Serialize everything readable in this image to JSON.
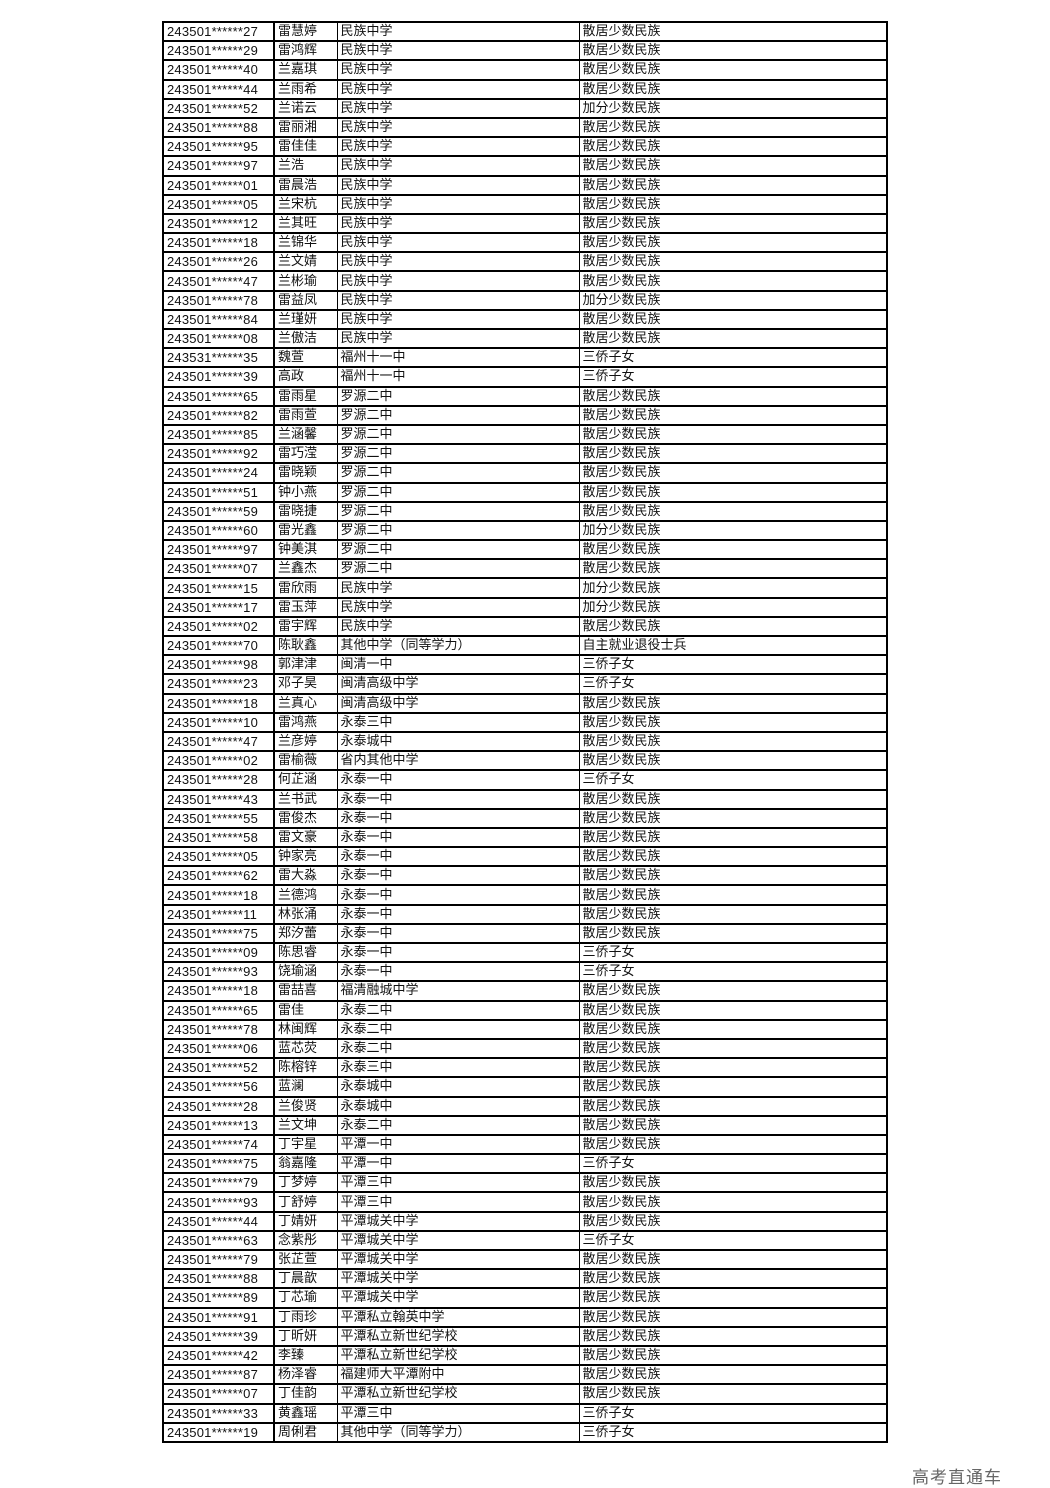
{
  "watermark": "高考直通车",
  "rows": [
    [
      "243501******27",
      "雷慧婷",
      "民族中学",
      "散居少数民族"
    ],
    [
      "243501******29",
      "雷鸿辉",
      "民族中学",
      "散居少数民族"
    ],
    [
      "243501******40",
      "兰嘉琪",
      "民族中学",
      "散居少数民族"
    ],
    [
      "243501******44",
      "兰雨希",
      "民族中学",
      "散居少数民族"
    ],
    [
      "243501******52",
      "兰诺云",
      "民族中学",
      "加分少数民族"
    ],
    [
      "243501******88",
      "雷丽湘",
      "民族中学",
      "散居少数民族"
    ],
    [
      "243501******95",
      "雷佳佳",
      "民族中学",
      "散居少数民族"
    ],
    [
      "243501******97",
      "兰浩",
      "民族中学",
      "散居少数民族"
    ],
    [
      "243501******01",
      "雷晨浩",
      "民族中学",
      "散居少数民族"
    ],
    [
      "243501******05",
      "兰宋杭",
      "民族中学",
      "散居少数民族"
    ],
    [
      "243501******12",
      "兰其旺",
      "民族中学",
      "散居少数民族"
    ],
    [
      "243501******18",
      "兰锦华",
      "民族中学",
      "散居少数民族"
    ],
    [
      "243501******26",
      "兰文婧",
      "民族中学",
      "散居少数民族"
    ],
    [
      "243501******47",
      "兰彬瑜",
      "民族中学",
      "散居少数民族"
    ],
    [
      "243501******78",
      "雷益凤",
      "民族中学",
      "加分少数民族"
    ],
    [
      "243501******84",
      "兰瑾妍",
      "民族中学",
      "散居少数民族"
    ],
    [
      "243501******08",
      "兰傲洁",
      "民族中学",
      "散居少数民族"
    ],
    [
      "243531******35",
      "魏萱",
      "福州十一中",
      "三侨子女"
    ],
    [
      "243501******39",
      "高政",
      "福州十一中",
      "三侨子女"
    ],
    [
      "243501******65",
      "雷雨星",
      "罗源二中",
      "散居少数民族"
    ],
    [
      "243501******82",
      "雷雨萱",
      "罗源二中",
      "散居少数民族"
    ],
    [
      "243501******85",
      "兰涵馨",
      "罗源二中",
      "散居少数民族"
    ],
    [
      "243501******92",
      "雷巧滢",
      "罗源二中",
      "散居少数民族"
    ],
    [
      "243501******24",
      "雷晓颖",
      "罗源二中",
      "散居少数民族"
    ],
    [
      "243501******51",
      "钟小燕",
      "罗源二中",
      "散居少数民族"
    ],
    [
      "243501******59",
      "雷晓捷",
      "罗源二中",
      "散居少数民族"
    ],
    [
      "243501******60",
      "雷光鑫",
      "罗源二中",
      "加分少数民族"
    ],
    [
      "243501******97",
      "钟美淇",
      "罗源二中",
      "散居少数民族"
    ],
    [
      "243501******07",
      "兰鑫杰",
      "罗源二中",
      "散居少数民族"
    ],
    [
      "243501******15",
      "雷欣雨",
      "民族中学",
      "加分少数民族"
    ],
    [
      "243501******17",
      "雷玉萍",
      "民族中学",
      "加分少数民族"
    ],
    [
      "243501******02",
      "雷宇辉",
      "民族中学",
      "散居少数民族"
    ],
    [
      "243501******70",
      "陈耿鑫",
      "其他中学（同等学力）",
      "自主就业退役士兵"
    ],
    [
      "243501******98",
      "郭津津",
      "闽清一中",
      "三侨子女"
    ],
    [
      "243501******23",
      "邓子昊",
      "闽清高级中学",
      "三侨子女"
    ],
    [
      "243501******18",
      "兰真心",
      "闽清高级中学",
      "散居少数民族"
    ],
    [
      "243501******10",
      "雷鸿燕",
      "永泰三中",
      "散居少数民族"
    ],
    [
      "243501******47",
      "兰彦婷",
      "永泰城中",
      "散居少数民族"
    ],
    [
      "243501******02",
      "雷榆薇",
      "省内其他中学",
      "散居少数民族"
    ],
    [
      "243501******28",
      "何芷涵",
      "永泰一中",
      "三侨子女"
    ],
    [
      "243501******43",
      "兰书武",
      "永泰一中",
      "散居少数民族"
    ],
    [
      "243501******55",
      "雷俊杰",
      "永泰一中",
      "散居少数民族"
    ],
    [
      "243501******58",
      "雷文豪",
      "永泰一中",
      "散居少数民族"
    ],
    [
      "243501******05",
      "钟家亮",
      "永泰一中",
      "散居少数民族"
    ],
    [
      "243501******62",
      "雷大淼",
      "永泰一中",
      "散居少数民族"
    ],
    [
      "243501******18",
      "兰德鸿",
      "永泰一中",
      "散居少数民族"
    ],
    [
      "243501******11",
      "林张涌",
      "永泰一中",
      "散居少数民族"
    ],
    [
      "243501******75",
      "郑汐蕾",
      "永泰一中",
      "散居少数民族"
    ],
    [
      "243501******09",
      "陈思睿",
      "永泰一中",
      "三侨子女"
    ],
    [
      "243501******93",
      "饶瑜涵",
      "永泰一中",
      "三侨子女"
    ],
    [
      "243501******18",
      "雷喆喜",
      "福清融城中学",
      "散居少数民族"
    ],
    [
      "243501******65",
      "雷佳",
      "永泰二中",
      "散居少数民族"
    ],
    [
      "243501******78",
      "林闽辉",
      "永泰二中",
      "散居少数民族"
    ],
    [
      "243501******06",
      "蓝芯荧",
      "永泰二中",
      "散居少数民族"
    ],
    [
      "243501******52",
      "陈榕锌",
      "永泰三中",
      "散居少数民族"
    ],
    [
      "243501******56",
      "蓝澜",
      "永泰城中",
      "散居少数民族"
    ],
    [
      "243501******28",
      "兰俊贤",
      "永泰城中",
      "散居少数民族"
    ],
    [
      "243501******13",
      "兰文坤",
      "永泰二中",
      "散居少数民族"
    ],
    [
      "243501******74",
      "丁宇星",
      "平潭一中",
      "散居少数民族"
    ],
    [
      "243501******75",
      "翁嘉隆",
      "平潭一中",
      "三侨子女"
    ],
    [
      "243501******79",
      "丁梦婷",
      "平潭三中",
      "散居少数民族"
    ],
    [
      "243501******93",
      "丁舒婷",
      "平潭三中",
      "散居少数民族"
    ],
    [
      "243501******44",
      "丁婧妍",
      "平潭城关中学",
      "散居少数民族"
    ],
    [
      "243501******63",
      "念紫彤",
      "平潭城关中学",
      "三侨子女"
    ],
    [
      "243501******79",
      "张芷萱",
      "平潭城关中学",
      "散居少数民族"
    ],
    [
      "243501******88",
      "丁晨歆",
      "平潭城关中学",
      "散居少数民族"
    ],
    [
      "243501******89",
      "丁芯瑜",
      "平潭城关中学",
      "散居少数民族"
    ],
    [
      "243501******91",
      "丁雨珍",
      "平潭私立翰英中学",
      "散居少数民族"
    ],
    [
      "243501******39",
      "丁昕妍",
      "平潭私立新世纪学校",
      "散居少数民族"
    ],
    [
      "243501******42",
      "李臻",
      "平潭私立新世纪学校",
      "散居少数民族"
    ],
    [
      "243501******87",
      "杨泽睿",
      "福建师大平潭附中",
      "散居少数民族"
    ],
    [
      "243501******07",
      "丁佳韵",
      "平潭私立新世纪学校",
      "散居少数民族"
    ],
    [
      "243501******33",
      "黄鑫瑶",
      "平潭三中",
      "三侨子女"
    ],
    [
      "243501******19",
      "周俐君",
      "其他中学（同等学力）",
      "三侨子女"
    ]
  ]
}
